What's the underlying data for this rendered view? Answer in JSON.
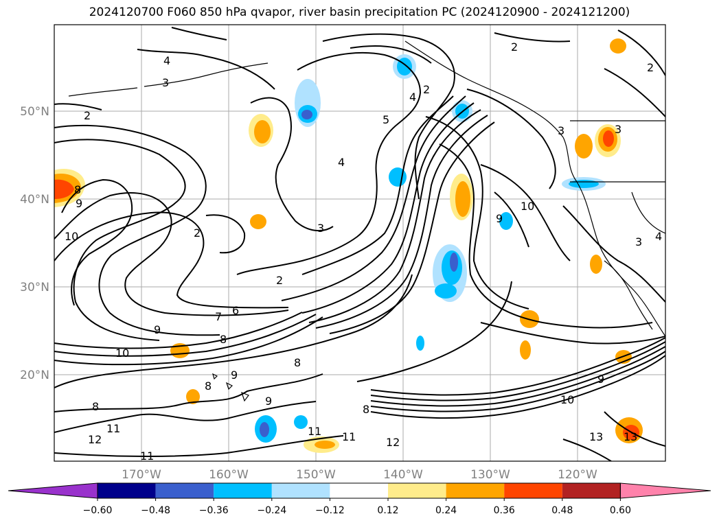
{
  "title": "2024120700 F060 850 hPa qvapor, river basin precipitation PC (2024120900 - 2024121200)",
  "map": {
    "lat_labels": [
      "50°N",
      "40°N",
      "30°N",
      "20°N"
    ],
    "lon_labels": [
      "170°W",
      "160°W",
      "150°W",
      "140°W",
      "130°W",
      "120°W"
    ],
    "lat_range": [
      10,
      60
    ],
    "lon_range": [
      -180,
      -110
    ]
  },
  "contour_labels": [
    "2",
    "4",
    "3",
    "5",
    "6",
    "7",
    "8",
    "9",
    "10",
    "11",
    "12",
    "13"
  ],
  "colorbar": {
    "ticks": [
      "-0.60",
      "-0.48",
      "-0.36",
      "-0.24",
      "-0.12",
      "0.12",
      "0.24",
      "0.36",
      "0.48",
      "0.60"
    ],
    "colors": [
      "#9932CC",
      "#00008B",
      "#3A5FCD",
      "#00BFFF",
      "#B0E2FF",
      "#FFFFFF",
      "#FFEC8B",
      "#FFA500",
      "#FF4500",
      "#B22222",
      "#FF82AB"
    ]
  }
}
